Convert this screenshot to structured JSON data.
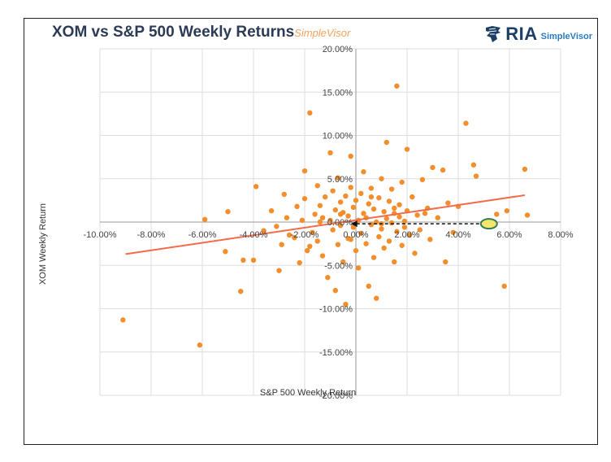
{
  "logo": {
    "brand": "RIA",
    "product": "SimpleVisor"
  },
  "chart_data": {
    "type": "scatter",
    "title": "XOM vs S&P 500 Weekly Returns",
    "watermark": "SimpleVisor",
    "xlabel": "S&P 500 Weekly Return",
    "ylabel": "XOM Weekly Return",
    "xlim": [
      -10,
      8
    ],
    "ylim": [
      -20,
      20
    ],
    "x_ticks": [
      "-10.00%",
      "-8.00%",
      "-6.00%",
      "-4.00%",
      "-2.00%",
      "0.00%",
      "2.00%",
      "4.00%",
      "6.00%",
      "8.00%"
    ],
    "y_ticks": [
      "20.00%",
      "15.00%",
      "10.00%",
      "5.00%",
      "0.00%",
      "-5.00%",
      "-10.00%",
      "-15.00%",
      "-20.00%"
    ],
    "grid": true,
    "colors": {
      "points": "#f28e2b",
      "trendline": "#f26b4b",
      "highlight_fill": "#f5e56b",
      "highlight_stroke": "#2e7d5b",
      "arrow": "#111111"
    },
    "trendline": {
      "x": [
        -9.0,
        6.6
      ],
      "y": [
        -3.7,
        3.1
      ]
    },
    "highlight": {
      "x": 5.2,
      "y": -0.2,
      "arrow_to_x": -0.2,
      "arrow_y": -0.2
    },
    "points": [
      [
        -9.1,
        -11.3
      ],
      [
        -6.1,
        -14.2
      ],
      [
        -5.9,
        0.3
      ],
      [
        -5.0,
        1.2
      ],
      [
        -4.5,
        -8.0
      ],
      [
        -4.4,
        -4.4
      ],
      [
        -4.0,
        -4.4
      ],
      [
        -5.1,
        -3.4
      ],
      [
        -3.9,
        4.1
      ],
      [
        -3.3,
        1.3
      ],
      [
        -3.1,
        -0.5
      ],
      [
        -3.0,
        -5.6
      ],
      [
        -2.8,
        3.2
      ],
      [
        -2.7,
        0.5
      ],
      [
        -2.6,
        -1.5
      ],
      [
        -2.4,
        -1.8
      ],
      [
        -2.3,
        1.8
      ],
      [
        -2.2,
        -4.7
      ],
      [
        -2.1,
        0.2
      ],
      [
        -2.0,
        5.9
      ],
      [
        -2.0,
        2.7
      ],
      [
        -1.9,
        -3.3
      ],
      [
        -1.8,
        12.6
      ],
      [
        -1.7,
        -1.2
      ],
      [
        -1.6,
        0.9
      ],
      [
        -1.5,
        4.2
      ],
      [
        -1.5,
        -2.2
      ],
      [
        -1.4,
        1.9
      ],
      [
        -1.3,
        0.5
      ],
      [
        -1.3,
        -3.9
      ],
      [
        -1.2,
        2.9
      ],
      [
        -1.1,
        -6.4
      ],
      [
        -1.0,
        8.0
      ],
      [
        -1.0,
        0.2
      ],
      [
        -0.9,
        -0.9
      ],
      [
        -0.9,
        3.6
      ],
      [
        -0.8,
        -7.9
      ],
      [
        -0.8,
        1.4
      ],
      [
        -0.7,
        -2.6
      ],
      [
        -0.7,
        5.1
      ],
      [
        -0.6,
        -0.4
      ],
      [
        -0.6,
        2.3
      ],
      [
        -0.5,
        -4.6
      ],
      [
        -0.5,
        1.1
      ],
      [
        -0.4,
        -9.5
      ],
      [
        -0.4,
        3.0
      ],
      [
        -0.3,
        0.7
      ],
      [
        -0.3,
        -1.9
      ],
      [
        -0.2,
        7.6
      ],
      [
        -0.2,
        4.0
      ],
      [
        -0.1,
        -0.6
      ],
      [
        -0.1,
        1.7
      ],
      [
        0.0,
        2.5
      ],
      [
        0.0,
        -3.3
      ],
      [
        0.1,
        0.2
      ],
      [
        0.1,
        -5.3
      ],
      [
        0.2,
        3.3
      ],
      [
        0.2,
        -1.3
      ],
      [
        0.3,
        1.0
      ],
      [
        0.3,
        5.8
      ],
      [
        0.4,
        -2.5
      ],
      [
        0.4,
        0.5
      ],
      [
        0.5,
        2.1
      ],
      [
        0.5,
        -7.4
      ],
      [
        0.6,
        -0.3
      ],
      [
        0.6,
        3.9
      ],
      [
        0.7,
        -4.1
      ],
      [
        0.7,
        1.5
      ],
      [
        0.8,
        -8.8
      ],
      [
        0.8,
        0.0
      ],
      [
        0.9,
        2.8
      ],
      [
        0.9,
        -1.7
      ],
      [
        1.0,
        5.0
      ],
      [
        1.0,
        -0.8
      ],
      [
        1.1,
        1.2
      ],
      [
        1.1,
        -3.0
      ],
      [
        1.2,
        9.2
      ],
      [
        1.2,
        0.4
      ],
      [
        1.3,
        -2.2
      ],
      [
        1.3,
        2.4
      ],
      [
        1.4,
        -0.1
      ],
      [
        1.4,
        3.8
      ],
      [
        1.5,
        -4.6
      ],
      [
        1.5,
        1.0
      ],
      [
        1.6,
        15.7
      ],
      [
        1.6,
        -1.1
      ],
      [
        1.7,
        0.6
      ],
      [
        1.7,
        2.0
      ],
      [
        1.8,
        -2.7
      ],
      [
        1.8,
        4.6
      ],
      [
        1.9,
        0.1
      ],
      [
        1.9,
        -0.6
      ],
      [
        2.0,
        8.4
      ],
      [
        2.0,
        1.3
      ],
      [
        2.1,
        -1.5
      ],
      [
        2.2,
        2.9
      ],
      [
        2.3,
        -3.6
      ],
      [
        2.4,
        0.8
      ],
      [
        2.5,
        -0.9
      ],
      [
        2.6,
        4.9
      ],
      [
        2.8,
        1.6
      ],
      [
        2.9,
        -2.0
      ],
      [
        3.0,
        6.3
      ],
      [
        3.2,
        0.5
      ],
      [
        3.4,
        6.0
      ],
      [
        3.5,
        -4.6
      ],
      [
        3.6,
        2.2
      ],
      [
        3.8,
        -1.2
      ],
      [
        4.0,
        1.8
      ],
      [
        4.3,
        11.4
      ],
      [
        4.6,
        6.6
      ],
      [
        4.7,
        5.3
      ],
      [
        5.5,
        0.9
      ],
      [
        5.8,
        -7.4
      ],
      [
        5.9,
        1.3
      ],
      [
        6.6,
        6.1
      ],
      [
        6.7,
        0.8
      ],
      [
        -2.9,
        -2.6
      ],
      [
        -3.6,
        -1.0
      ],
      [
        -1.8,
        -2.8
      ],
      [
        -0.2,
        -2.0
      ],
      [
        1.0,
        -0.2
      ],
      [
        0.6,
        2.9
      ],
      [
        -1.4,
        0.0
      ],
      [
        2.7,
        1.0
      ],
      [
        -0.6,
        0.9
      ],
      [
        1.5,
        1.6
      ]
    ]
  }
}
